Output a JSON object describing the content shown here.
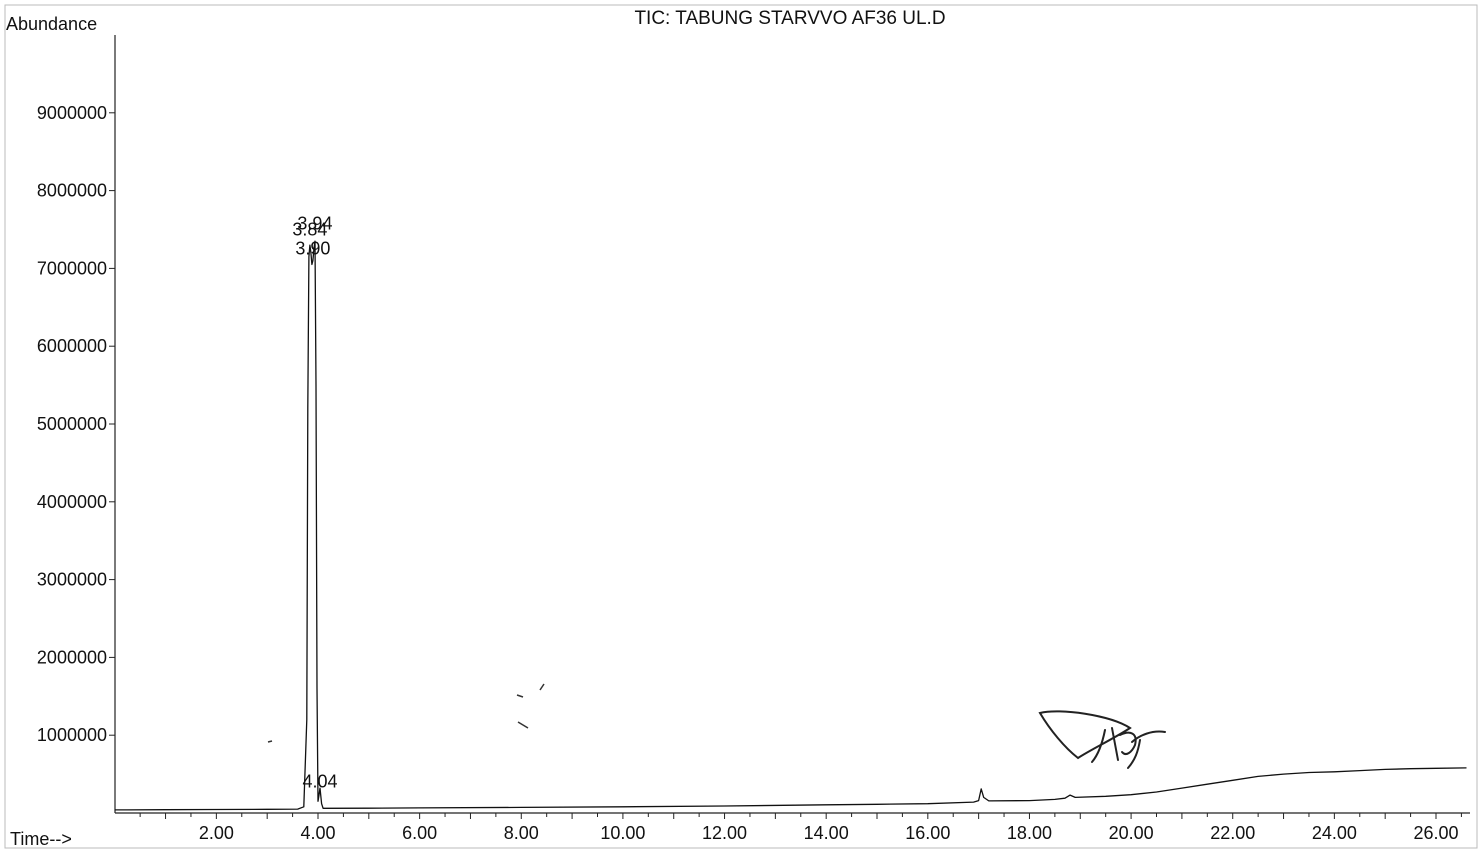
{
  "chart_data": {
    "type": "line",
    "title": "TIC: TABUNG STARVVO AF36 UL.D",
    "ylabel": "Abundance",
    "xlabel": "Time-->",
    "xlim": [
      0.0,
      26.6
    ],
    "ylim": [
      0,
      10000000
    ],
    "x_ticks": [
      "2.00",
      "4.00",
      "6.00",
      "8.00",
      "10.00",
      "12.00",
      "14.00",
      "16.00",
      "18.00",
      "20.00",
      "22.00",
      "24.00",
      "26.00"
    ],
    "y_ticks": [
      "1000000",
      "2000000",
      "3000000",
      "4000000",
      "5000000",
      "6000000",
      "7000000",
      "8000000",
      "9000000"
    ],
    "peak_labels": [
      {
        "text": "3.94",
        "x": 3.94,
        "y": 7500000
      },
      {
        "text": "3.84",
        "x": 3.84,
        "y": 7420000
      },
      {
        "text": "3.90",
        "x": 3.9,
        "y": 7180000
      },
      {
        "text": "4.04",
        "x": 4.04,
        "y": 330000
      }
    ],
    "series": [
      {
        "color": "#111111",
        "points": [
          [
            0.0,
            40000
          ],
          [
            1.0,
            42000
          ],
          [
            2.0,
            45000
          ],
          [
            3.0,
            48000
          ],
          [
            3.6,
            50000
          ],
          [
            3.72,
            80000
          ],
          [
            3.78,
            1200000
          ],
          [
            3.8,
            5200000
          ],
          [
            3.82,
            7150000
          ],
          [
            3.84,
            7300000
          ],
          [
            3.86,
            7200000
          ],
          [
            3.88,
            7050000
          ],
          [
            3.9,
            7100000
          ],
          [
            3.92,
            7250000
          ],
          [
            3.94,
            7350000
          ],
          [
            3.96,
            5500000
          ],
          [
            3.98,
            1600000
          ],
          [
            4.0,
            150000
          ],
          [
            4.02,
            230000
          ],
          [
            4.04,
            320000
          ],
          [
            4.07,
            120000
          ],
          [
            4.1,
            60000
          ],
          [
            5.0,
            62000
          ],
          [
            6.0,
            65000
          ],
          [
            8.0,
            72000
          ],
          [
            10.0,
            80000
          ],
          [
            12.0,
            90000
          ],
          [
            14.0,
            105000
          ],
          [
            15.0,
            112000
          ],
          [
            16.0,
            120000
          ],
          [
            16.9,
            140000
          ],
          [
            17.0,
            160000
          ],
          [
            17.05,
            310000
          ],
          [
            17.1,
            200000
          ],
          [
            17.2,
            155000
          ],
          [
            18.0,
            160000
          ],
          [
            18.5,
            175000
          ],
          [
            18.7,
            190000
          ],
          [
            18.8,
            230000
          ],
          [
            18.9,
            200000
          ],
          [
            19.5,
            215000
          ],
          [
            20.0,
            235000
          ],
          [
            20.5,
            270000
          ],
          [
            21.0,
            320000
          ],
          [
            21.5,
            370000
          ],
          [
            22.0,
            420000
          ],
          [
            22.5,
            470000
          ],
          [
            23.0,
            500000
          ],
          [
            23.5,
            520000
          ],
          [
            24.0,
            530000
          ],
          [
            24.5,
            545000
          ],
          [
            25.0,
            560000
          ],
          [
            25.5,
            570000
          ],
          [
            26.0,
            575000
          ],
          [
            26.6,
            580000
          ]
        ]
      }
    ],
    "grid": false,
    "annotations": [
      "handwritten signature"
    ]
  }
}
